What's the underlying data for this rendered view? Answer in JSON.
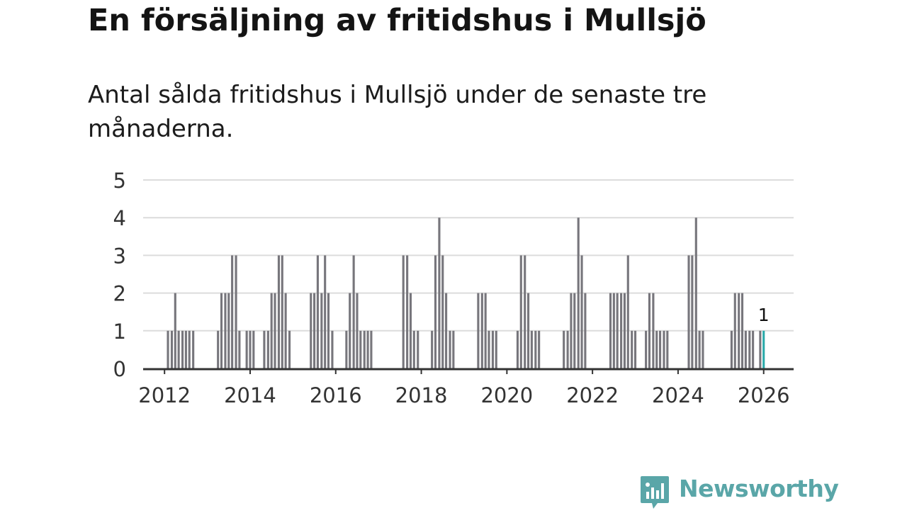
{
  "header": {
    "title": "En försäljning av fritidshus i Mullsjö",
    "subtitle": "Antal sålda fritidshus i Mullsjö under de senaste tre månaderna."
  },
  "brand": {
    "name": "Newsworthy"
  },
  "colors": {
    "bar": "#77767c",
    "highlight": "#2aa9a9",
    "grid": "#dcdcdc",
    "axis": "#333333",
    "brand": "#5aa6a8"
  },
  "chart_data": {
    "type": "bar",
    "title": "En försäljning av fritidshus i Mullsjö",
    "xlabel": "",
    "ylabel": "",
    "ylim": [
      0,
      5
    ],
    "xlim": [
      2011.5,
      2026.7
    ],
    "yticks": [
      0,
      1,
      2,
      3,
      4,
      5
    ],
    "xticks": [
      2012,
      2014,
      2016,
      2018,
      2020,
      2022,
      2024,
      2026
    ],
    "highlight_label": "1",
    "series": [
      {
        "name": "Antal sålda fritidshus",
        "points": [
          {
            "x": 2012.08,
            "y": 1
          },
          {
            "x": 2012.17,
            "y": 1
          },
          {
            "x": 2012.25,
            "y": 2
          },
          {
            "x": 2012.33,
            "y": 1
          },
          {
            "x": 2012.42,
            "y": 1
          },
          {
            "x": 2012.5,
            "y": 1
          },
          {
            "x": 2012.58,
            "y": 1
          },
          {
            "x": 2012.67,
            "y": 1
          },
          {
            "x": 2013.25,
            "y": 1
          },
          {
            "x": 2013.33,
            "y": 2
          },
          {
            "x": 2013.42,
            "y": 2
          },
          {
            "x": 2013.5,
            "y": 2
          },
          {
            "x": 2013.58,
            "y": 3
          },
          {
            "x": 2013.67,
            "y": 3
          },
          {
            "x": 2013.75,
            "y": 1
          },
          {
            "x": 2013.92,
            "y": 1
          },
          {
            "x": 2014.0,
            "y": 1
          },
          {
            "x": 2014.08,
            "y": 1
          },
          {
            "x": 2014.33,
            "y": 1
          },
          {
            "x": 2014.42,
            "y": 1
          },
          {
            "x": 2014.5,
            "y": 2
          },
          {
            "x": 2014.58,
            "y": 2
          },
          {
            "x": 2014.67,
            "y": 3
          },
          {
            "x": 2014.75,
            "y": 3
          },
          {
            "x": 2014.83,
            "y": 2
          },
          {
            "x": 2014.92,
            "y": 1
          },
          {
            "x": 2015.42,
            "y": 2
          },
          {
            "x": 2015.5,
            "y": 2
          },
          {
            "x": 2015.58,
            "y": 3
          },
          {
            "x": 2015.67,
            "y": 2
          },
          {
            "x": 2015.75,
            "y": 3
          },
          {
            "x": 2015.83,
            "y": 2
          },
          {
            "x": 2015.92,
            "y": 1
          },
          {
            "x": 2016.25,
            "y": 1
          },
          {
            "x": 2016.33,
            "y": 2
          },
          {
            "x": 2016.42,
            "y": 3
          },
          {
            "x": 2016.5,
            "y": 2
          },
          {
            "x": 2016.58,
            "y": 1
          },
          {
            "x": 2016.67,
            "y": 1
          },
          {
            "x": 2016.75,
            "y": 1
          },
          {
            "x": 2016.83,
            "y": 1
          },
          {
            "x": 2017.58,
            "y": 3
          },
          {
            "x": 2017.67,
            "y": 3
          },
          {
            "x": 2017.75,
            "y": 2
          },
          {
            "x": 2017.83,
            "y": 1
          },
          {
            "x": 2017.92,
            "y": 1
          },
          {
            "x": 2018.25,
            "y": 1
          },
          {
            "x": 2018.33,
            "y": 3
          },
          {
            "x": 2018.42,
            "y": 4
          },
          {
            "x": 2018.5,
            "y": 3
          },
          {
            "x": 2018.58,
            "y": 2
          },
          {
            "x": 2018.67,
            "y": 1
          },
          {
            "x": 2018.75,
            "y": 1
          },
          {
            "x": 2019.33,
            "y": 2
          },
          {
            "x": 2019.42,
            "y": 2
          },
          {
            "x": 2019.5,
            "y": 2
          },
          {
            "x": 2019.58,
            "y": 1
          },
          {
            "x": 2019.67,
            "y": 1
          },
          {
            "x": 2019.75,
            "y": 1
          },
          {
            "x": 2020.25,
            "y": 1
          },
          {
            "x": 2020.33,
            "y": 3
          },
          {
            "x": 2020.42,
            "y": 3
          },
          {
            "x": 2020.5,
            "y": 2
          },
          {
            "x": 2020.58,
            "y": 1
          },
          {
            "x": 2020.67,
            "y": 1
          },
          {
            "x": 2020.75,
            "y": 1
          },
          {
            "x": 2021.33,
            "y": 1
          },
          {
            "x": 2021.42,
            "y": 1
          },
          {
            "x": 2021.5,
            "y": 2
          },
          {
            "x": 2021.58,
            "y": 2
          },
          {
            "x": 2021.67,
            "y": 4
          },
          {
            "x": 2021.75,
            "y": 3
          },
          {
            "x": 2021.83,
            "y": 2
          },
          {
            "x": 2022.42,
            "y": 2
          },
          {
            "x": 2022.5,
            "y": 2
          },
          {
            "x": 2022.58,
            "y": 2
          },
          {
            "x": 2022.67,
            "y": 2
          },
          {
            "x": 2022.75,
            "y": 2
          },
          {
            "x": 2022.83,
            "y": 3
          },
          {
            "x": 2022.92,
            "y": 1
          },
          {
            "x": 2023.0,
            "y": 1
          },
          {
            "x": 2023.25,
            "y": 1
          },
          {
            "x": 2023.33,
            "y": 2
          },
          {
            "x": 2023.42,
            "y": 2
          },
          {
            "x": 2023.5,
            "y": 1
          },
          {
            "x": 2023.58,
            "y": 1
          },
          {
            "x": 2023.67,
            "y": 1
          },
          {
            "x": 2023.75,
            "y": 1
          },
          {
            "x": 2024.25,
            "y": 3
          },
          {
            "x": 2024.33,
            "y": 3
          },
          {
            "x": 2024.42,
            "y": 4
          },
          {
            "x": 2024.5,
            "y": 1
          },
          {
            "x": 2024.58,
            "y": 1
          },
          {
            "x": 2025.25,
            "y": 1
          },
          {
            "x": 2025.33,
            "y": 2
          },
          {
            "x": 2025.42,
            "y": 2
          },
          {
            "x": 2025.5,
            "y": 2
          },
          {
            "x": 2025.58,
            "y": 1
          },
          {
            "x": 2025.67,
            "y": 1
          },
          {
            "x": 2025.75,
            "y": 1
          },
          {
            "x": 2025.92,
            "y": 1
          },
          {
            "x": 2026.0,
            "y": 1,
            "highlight": true
          }
        ]
      }
    ]
  }
}
